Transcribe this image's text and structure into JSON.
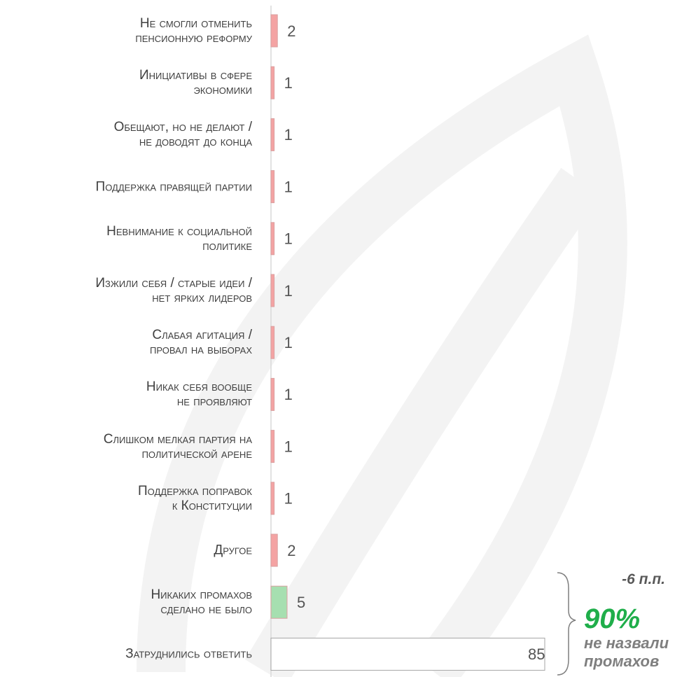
{
  "chart_data": {
    "type": "bar",
    "orientation": "horizontal",
    "categories": [
      "Не смогли отменить\nпенсионную реформу",
      "Инициативы в сфере\nэкономики",
      "Обещают, но не делают /\nне доводят до конца",
      "Поддержка правящей партии",
      "Невнимание к социальной\nполитике",
      "Изжили себя / старые идеи /\nнет ярких лидеров",
      "Слабая агитация /\nпровал на выборах",
      "Никак себя вообще\nне проявляют",
      "Слишком мелкая партия на\nполитической арене",
      "Поддержка поправок\nк Конституции",
      "Другое",
      "Никаких промахов\nсделано не было",
      "Затруднились ответить"
    ],
    "values": [
      2,
      1,
      1,
      1,
      1,
      1,
      1,
      1,
      1,
      1,
      2,
      5,
      85
    ],
    "colors": [
      "#f4a3a3",
      "#f4a3a3",
      "#f4a3a3",
      "#f4a3a3",
      "#f4a3a3",
      "#f4a3a3",
      "#f4a3a3",
      "#f4a3a3",
      "#f4a3a3",
      "#f4a3a3",
      "#f4a3a3",
      "#a6dfb0",
      "#ffffff"
    ],
    "annotations": {
      "change": "-6 п.п.",
      "share": "90%",
      "share_text": "не назвали\nпромахов"
    }
  }
}
